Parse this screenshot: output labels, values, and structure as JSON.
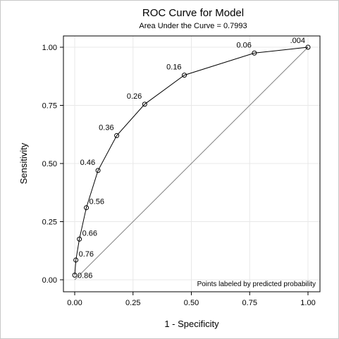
{
  "chart_data": {
    "type": "line",
    "title": "ROC Curve for Model",
    "subtitle": "Area Under the Curve = 0.7993",
    "xlabel": "1 - Specificity",
    "ylabel": "Sensitivity",
    "xlim": [
      0,
      1
    ],
    "ylim": [
      0,
      1
    ],
    "xticks": [
      0,
      0.25,
      0.5,
      0.75,
      1
    ],
    "yticks": [
      0,
      0.25,
      0.5,
      0.75,
      1
    ],
    "xtick_labels": [
      "0.00",
      "0.25",
      "0.50",
      "0.75",
      "1.00"
    ],
    "ytick_labels": [
      "0.00",
      "0.25",
      "0.50",
      "0.75",
      "1.00"
    ],
    "grid": true,
    "reference_line": true,
    "series": [
      {
        "x": [
          0.0,
          0.005,
          0.02,
          0.05,
          0.1,
          0.18,
          0.3,
          0.47,
          0.77,
          1.0
        ],
        "y": [
          0.02,
          0.085,
          0.175,
          0.31,
          0.47,
          0.62,
          0.755,
          0.88,
          0.975,
          1.0
        ],
        "point_labels": [
          "0.86",
          "0.76",
          "0.66",
          "0.56",
          "0.46",
          "0.36",
          "0.26",
          "0.16",
          "0.06",
          ".004"
        ]
      }
    ],
    "annotation": "Points labeled by predicted probability",
    "line_color": "#000000",
    "reference_color": "#808080",
    "grid_color": "#e8e8e8"
  }
}
